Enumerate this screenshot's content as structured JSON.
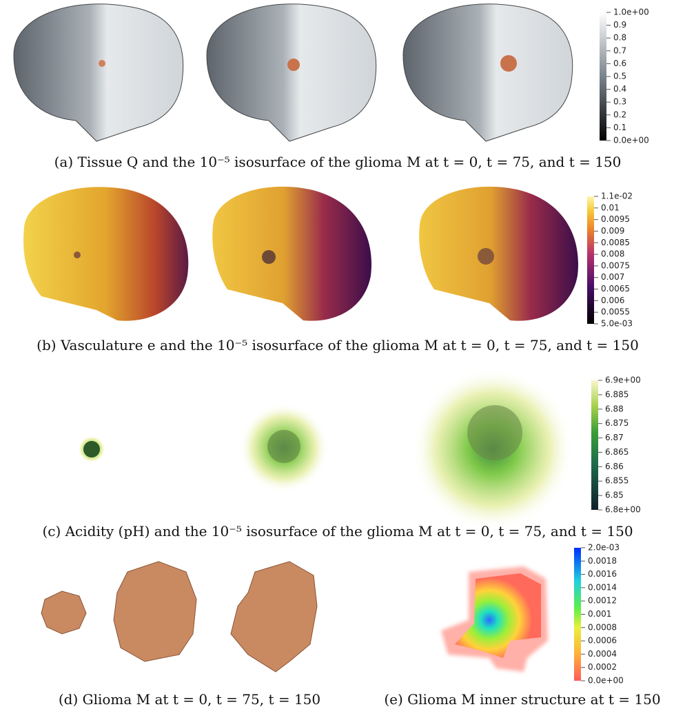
{
  "panels": [
    {
      "caption": "(a) Tissue Q and the 10⁻⁵ isosurface of the glioma M at t = 0, t = 75, and t = 150",
      "colorbar": [
        "1.0e+00",
        "0.9",
        "0.8",
        "0.7",
        "0.6",
        "0.5",
        "0.4",
        "0.3",
        "0.2",
        "0.1",
        "0.0e+00"
      ]
    },
    {
      "caption": "(b) Vasculature e and the 10⁻⁵ isosurface of the glioma M at t = 0, t = 75, and t = 150",
      "colorbar": [
        "1.1e-02",
        "0.01",
        "0.0095",
        "0.009",
        "0.0085",
        "0.008",
        "0.0075",
        "0.007",
        "0.0065",
        "0.006",
        "0.0055",
        "5.0e-03"
      ]
    },
    {
      "caption": "(c) Acidity (pH) and the 10⁻⁵ isosurface of the glioma M at t = 0, t = 75, and t = 150",
      "colorbar": [
        "6.9e+00",
        "6.885",
        "6.88",
        "6.875",
        "6.87",
        "6.865",
        "6.86",
        "6.855",
        "6.85",
        "6.8e+00"
      ]
    },
    {
      "caption": "(d) Glioma M at t = 0, t = 75, t = 150"
    },
    {
      "caption": "(e) Glioma M inner structure at t = 150",
      "colorbar": [
        "2.0e-03",
        "0.0018",
        "0.0016",
        "0.0014",
        "0.0012",
        "0.001",
        "0.0008",
        "0.0006",
        "0.0004",
        "0.0002",
        "0.0e+00"
      ]
    }
  ]
}
